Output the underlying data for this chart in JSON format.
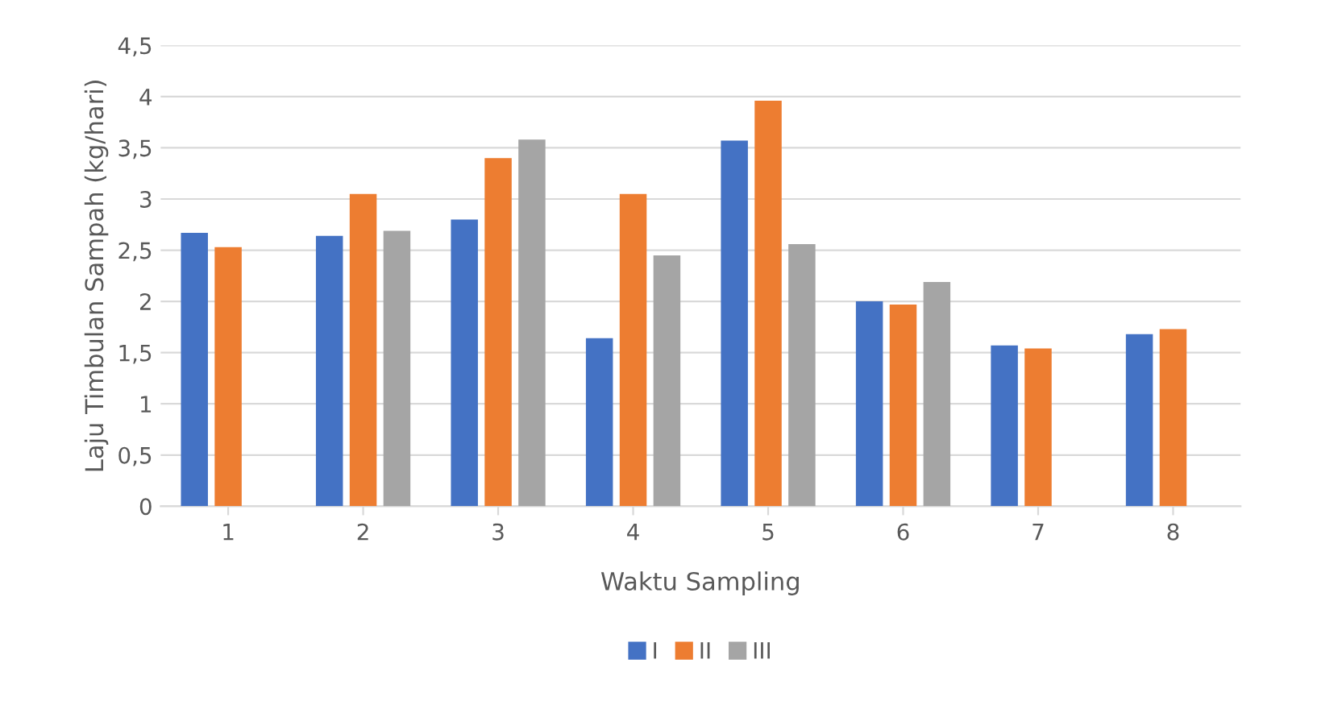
{
  "chart_data": {
    "type": "bar",
    "xlabel": "Waktu Sampling",
    "ylabel": "Laju Timbulan Sampah (kg/hari)",
    "categories": [
      "1",
      "2",
      "3",
      "4",
      "5",
      "6",
      "7",
      "8"
    ],
    "series": [
      {
        "name": "I",
        "color": "#4472c4",
        "values": [
          2.67,
          2.64,
          2.8,
          1.64,
          3.57,
          2.0,
          1.57,
          1.68
        ]
      },
      {
        "name": "II",
        "color": "#ed7d31",
        "values": [
          2.53,
          3.05,
          3.4,
          3.05,
          3.96,
          1.97,
          1.54,
          1.73
        ]
      },
      {
        "name": "III",
        "color": "#a5a5a5",
        "values": [
          null,
          2.69,
          3.58,
          2.45,
          2.56,
          2.19,
          null,
          null
        ]
      }
    ],
    "ylim": [
      0,
      4.5
    ],
    "yticks": [
      0,
      {
        "value": 0.5,
        "label": "0,5"
      },
      1,
      {
        "value": 1.5,
        "label": "1,5"
      },
      2,
      {
        "value": 2.5,
        "label": "2,5"
      },
      3,
      {
        "value": 3.5,
        "label": "3,5"
      },
      4,
      {
        "value": 4.5,
        "label": "4,5"
      }
    ],
    "grid": "y",
    "legend": "bottom"
  }
}
